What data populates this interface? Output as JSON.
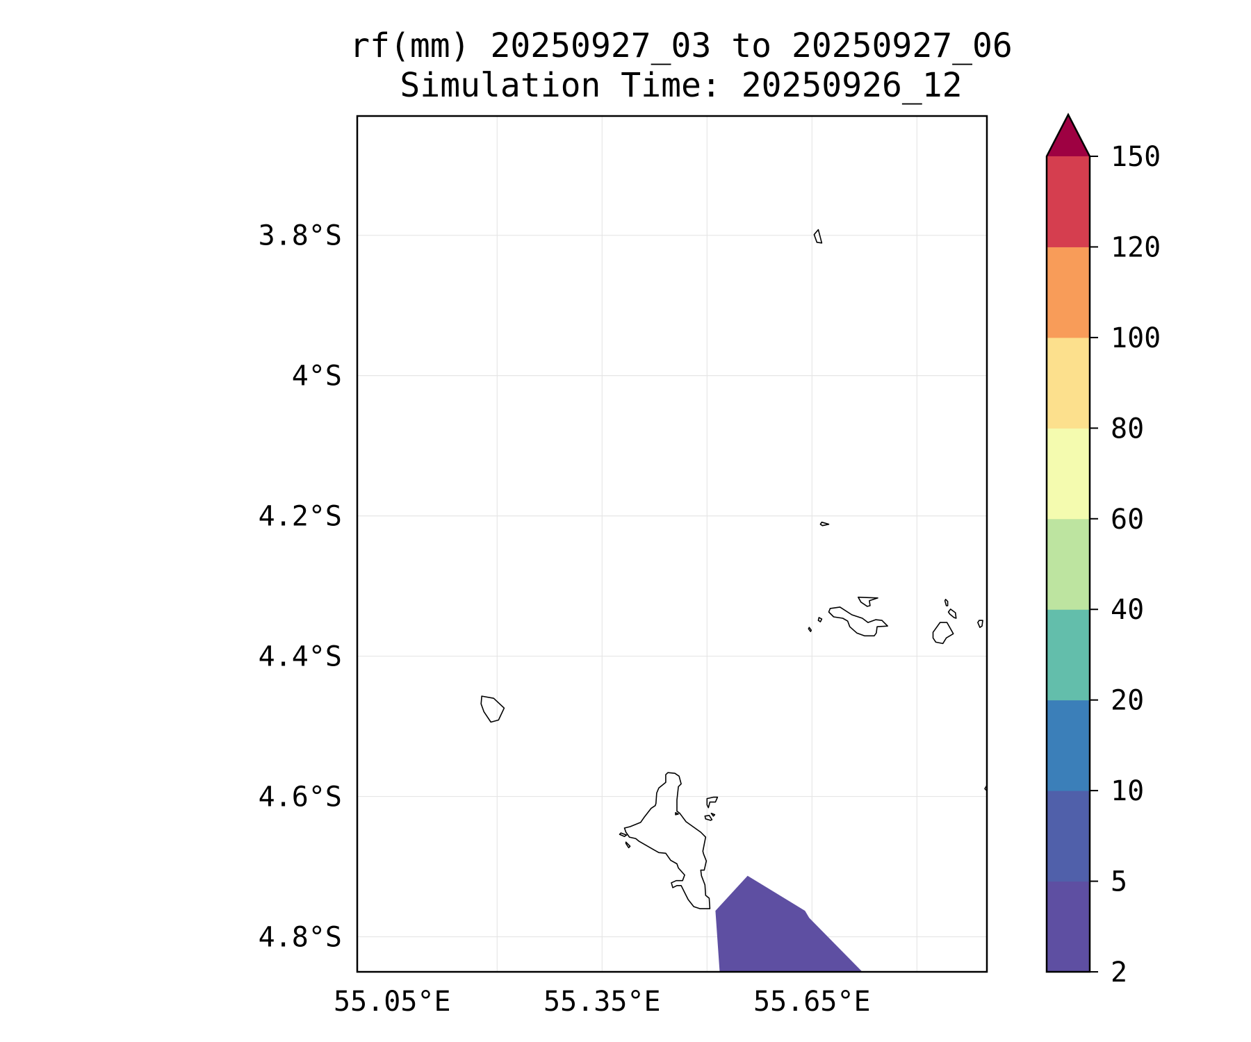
{
  "title": {
    "line1": "rf(mm) 20250927_03 to 20250927_06",
    "line2": "Simulation Time: 20250926_12"
  },
  "map": {
    "lon_range": [
      55.0,
      55.9
    ],
    "lat_range": [
      -4.85,
      -3.63
    ],
    "lon_ticks": [
      {
        "value": 55.05,
        "label": "55.05°E"
      },
      {
        "value": 55.35,
        "label": "55.35°E"
      },
      {
        "value": 55.65,
        "label": "55.65°E"
      }
    ],
    "lat_ticks": [
      {
        "value": -3.8,
        "label": "3.8°S"
      },
      {
        "value": -4.0,
        "label": "4°S"
      },
      {
        "value": -4.2,
        "label": "4.2°S"
      },
      {
        "value": -4.4,
        "label": "4.4°S"
      },
      {
        "value": -4.6,
        "label": "4.6°S"
      },
      {
        "value": -4.8,
        "label": "4.8°S"
      }
    ],
    "grid": true,
    "rain_region": {
      "level": "2-5",
      "color": "#5e4fa2",
      "polygon": [
        [
          55.518,
          -4.85
        ],
        [
          55.512,
          -4.763
        ],
        [
          55.558,
          -4.713
        ],
        [
          55.64,
          -4.763
        ],
        [
          55.646,
          -4.773
        ],
        [
          55.722,
          -4.85
        ]
      ]
    },
    "islands": [
      {
        "name": "Mahe",
        "points": [
          [
            55.39,
            -4.643
          ],
          [
            55.405,
            -4.637
          ],
          [
            55.41,
            -4.63
          ],
          [
            55.42,
            -4.617
          ],
          [
            55.426,
            -4.613
          ],
          [
            55.427,
            -4.61
          ],
          [
            55.428,
            -4.595
          ],
          [
            55.431,
            -4.588
          ],
          [
            55.441,
            -4.58
          ],
          [
            55.441,
            -4.569
          ],
          [
            55.444,
            -4.566
          ],
          [
            55.454,
            -4.567
          ],
          [
            55.46,
            -4.571
          ],
          [
            55.463,
            -4.582
          ],
          [
            55.459,
            -4.586
          ],
          [
            55.457,
            -4.605
          ],
          [
            55.457,
            -4.621
          ],
          [
            55.461,
            -4.624
          ],
          [
            55.464,
            -4.628
          ],
          [
            55.47,
            -4.636
          ],
          [
            55.491,
            -4.651
          ],
          [
            55.498,
            -4.658
          ],
          [
            55.494,
            -4.678
          ],
          [
            55.495,
            -4.682
          ],
          [
            55.499,
            -4.692
          ],
          [
            55.496,
            -4.705
          ],
          [
            55.491,
            -4.705
          ],
          [
            55.492,
            -4.713
          ],
          [
            55.497,
            -4.726
          ],
          [
            55.498,
            -4.741
          ],
          [
            55.503,
            -4.745
          ],
          [
            55.504,
            -4.76
          ],
          [
            55.49,
            -4.76
          ],
          [
            55.481,
            -4.757
          ],
          [
            55.473,
            -4.747
          ],
          [
            55.467,
            -4.735
          ],
          [
            55.463,
            -4.727
          ],
          [
            55.457,
            -4.727
          ],
          [
            55.451,
            -4.73
          ],
          [
            55.449,
            -4.723
          ],
          [
            55.456,
            -4.72
          ],
          [
            55.465,
            -4.72
          ],
          [
            55.468,
            -4.712
          ],
          [
            55.459,
            -4.702
          ],
          [
            55.457,
            -4.696
          ],
          [
            55.448,
            -4.691
          ],
          [
            55.441,
            -4.681
          ],
          [
            55.431,
            -4.68
          ],
          [
            55.424,
            -4.676
          ],
          [
            55.41,
            -4.668
          ],
          [
            55.403,
            -4.664
          ],
          [
            55.398,
            -4.66
          ],
          [
            55.389,
            -4.658
          ],
          [
            55.384,
            -4.651
          ],
          [
            55.382,
            -4.645
          ],
          [
            55.39,
            -4.643
          ]
        ]
      },
      {
        "name": "SilhouetteSW",
        "points": [
          [
            55.178,
            -4.457
          ],
          [
            55.195,
            -4.46
          ],
          [
            55.21,
            -4.474
          ],
          [
            55.202,
            -4.491
          ],
          [
            55.191,
            -4.494
          ],
          [
            55.181,
            -4.479
          ],
          [
            55.177,
            -4.468
          ],
          [
            55.178,
            -4.457
          ]
        ]
      },
      {
        "name": "Praslin",
        "points": [
          [
            55.676,
            -4.332
          ],
          [
            55.69,
            -4.33
          ],
          [
            55.707,
            -4.341
          ],
          [
            55.722,
            -4.346
          ],
          [
            55.73,
            -4.352
          ],
          [
            55.741,
            -4.348
          ],
          [
            55.75,
            -4.349
          ],
          [
            55.758,
            -4.357
          ],
          [
            55.743,
            -4.358
          ],
          [
            55.742,
            -4.367
          ],
          [
            55.739,
            -4.371
          ],
          [
            55.725,
            -4.371
          ],
          [
            55.714,
            -4.367
          ],
          [
            55.704,
            -4.358
          ],
          [
            55.701,
            -4.35
          ],
          [
            55.694,
            -4.346
          ],
          [
            55.681,
            -4.344
          ],
          [
            55.674,
            -4.337
          ],
          [
            55.676,
            -4.332
          ]
        ]
      },
      {
        "name": "Curieuse",
        "points": [
          [
            55.716,
            -4.316
          ],
          [
            55.744,
            -4.317
          ],
          [
            55.735,
            -4.32
          ],
          [
            55.732,
            -4.321
          ],
          [
            55.733,
            -4.328
          ],
          [
            55.729,
            -4.329
          ],
          [
            55.72,
            -4.323
          ],
          [
            55.716,
            -4.316
          ]
        ]
      },
      {
        "name": "LaDigue",
        "points": [
          [
            55.833,
            -4.352
          ],
          [
            55.843,
            -4.352
          ],
          [
            55.852,
            -4.368
          ],
          [
            55.842,
            -4.374
          ],
          [
            55.837,
            -4.382
          ],
          [
            55.827,
            -4.38
          ],
          [
            55.823,
            -4.374
          ],
          [
            55.823,
            -4.366
          ],
          [
            55.833,
            -4.352
          ]
        ]
      },
      {
        "name": "Felicite",
        "points": [
          [
            55.848,
            -4.333
          ],
          [
            55.855,
            -4.338
          ],
          [
            55.856,
            -4.346
          ],
          [
            55.853,
            -4.345
          ],
          [
            55.847,
            -4.34
          ],
          [
            55.845,
            -4.337
          ],
          [
            55.848,
            -4.333
          ]
        ]
      },
      {
        "name": "Marianne",
        "points": [
          [
            55.889,
            -4.349
          ],
          [
            55.894,
            -4.349
          ],
          [
            55.893,
            -4.357
          ],
          [
            55.89,
            -4.359
          ],
          [
            55.887,
            -4.352
          ],
          [
            55.889,
            -4.349
          ]
        ]
      },
      {
        "name": "ItsyNE",
        "points": [
          [
            55.841,
            -4.319
          ],
          [
            55.844,
            -4.322
          ],
          [
            55.844,
            -4.328
          ],
          [
            55.842,
            -4.328
          ],
          [
            55.84,
            -4.321
          ],
          [
            55.841,
            -4.319
          ]
        ]
      },
      {
        "name": "Aride",
        "points": [
          [
            55.664,
            -4.209
          ],
          [
            55.674,
            -4.212
          ],
          [
            55.665,
            -4.214
          ],
          [
            55.662,
            -4.212
          ],
          [
            55.664,
            -4.209
          ]
        ]
      },
      {
        "name": "Denis",
        "points": [
          [
            55.653,
            -3.799
          ],
          [
            55.659,
            -3.792
          ],
          [
            55.664,
            -3.811
          ],
          [
            55.657,
            -3.81
          ],
          [
            55.653,
            -3.799
          ]
        ]
      },
      {
        "name": "Cousin",
        "points": [
          [
            55.66,
            -4.345
          ],
          [
            55.664,
            -4.347
          ],
          [
            55.662,
            -4.351
          ],
          [
            55.659,
            -4.349
          ],
          [
            55.66,
            -4.345
          ]
        ]
      },
      {
        "name": "Cousine",
        "points": [
          [
            55.646,
            -4.359
          ],
          [
            55.649,
            -4.363
          ],
          [
            55.648,
            -4.365
          ],
          [
            55.645,
            -4.361
          ],
          [
            55.646,
            -4.359
          ]
        ]
      },
      {
        "name": "StAnne",
        "points": [
          [
            55.5,
            -4.603
          ],
          [
            55.509,
            -4.601
          ],
          [
            55.515,
            -4.601
          ],
          [
            55.512,
            -4.608
          ],
          [
            55.504,
            -4.608
          ],
          [
            55.502,
            -4.616
          ],
          [
            55.5,
            -4.612
          ],
          [
            55.5,
            -4.603
          ]
        ]
      },
      {
        "name": "Cerf",
        "points": [
          [
            55.497,
            -4.628
          ],
          [
            55.503,
            -4.627
          ],
          [
            55.507,
            -4.633
          ],
          [
            55.505,
            -4.634
          ],
          [
            55.498,
            -4.632
          ],
          [
            55.497,
            -4.628
          ]
        ]
      },
      {
        "name": "Moyenne",
        "points": [
          [
            55.506,
            -4.624
          ],
          [
            55.511,
            -4.626
          ],
          [
            55.509,
            -4.628
          ],
          [
            55.506,
            -4.624
          ]
        ]
      },
      {
        "name": "Therese",
        "points": [
          [
            55.377,
            -4.652
          ],
          [
            55.385,
            -4.655
          ],
          [
            55.382,
            -4.657
          ],
          [
            55.375,
            -4.654
          ],
          [
            55.377,
            -4.652
          ]
        ]
      },
      {
        "name": "Conception",
        "points": [
          [
            55.384,
            -4.665
          ],
          [
            55.39,
            -4.671
          ],
          [
            55.388,
            -4.673
          ],
          [
            55.384,
            -4.667
          ],
          [
            55.384,
            -4.665
          ]
        ]
      },
      {
        "name": "Islet1",
        "points": [
          [
            55.455,
            -4.623
          ],
          [
            55.459,
            -4.625
          ],
          [
            55.455,
            -4.626
          ],
          [
            55.455,
            -4.623
          ]
        ]
      },
      {
        "name": "EastEdge",
        "points": [
          [
            55.9,
            -4.584
          ],
          [
            55.897,
            -4.589
          ],
          [
            55.9,
            -4.592
          ]
        ]
      }
    ]
  },
  "colorbar": {
    "levels": [
      {
        "lo": 2,
        "hi": 5,
        "color": "#5e4fa2"
      },
      {
        "lo": 5,
        "hi": 10,
        "color": "#5060aa"
      },
      {
        "lo": 10,
        "hi": 20,
        "color": "#3b7fb9"
      },
      {
        "lo": 20,
        "hi": 40,
        "color": "#63beab"
      },
      {
        "lo": 40,
        "hi": 60,
        "color": "#bde4a0"
      },
      {
        "lo": 60,
        "hi": 80,
        "color": "#f4fbaf"
      },
      {
        "lo": 80,
        "hi": 100,
        "color": "#fce08d"
      },
      {
        "lo": 100,
        "hi": 120,
        "color": "#f89c59"
      },
      {
        "lo": 120,
        "hi": 150,
        "color": "#d53e4f"
      }
    ],
    "extend_color": "#9e0142",
    "tick_labels": [
      "2",
      "5",
      "10",
      "20",
      "40",
      "60",
      "80",
      "100",
      "120",
      "150"
    ]
  }
}
